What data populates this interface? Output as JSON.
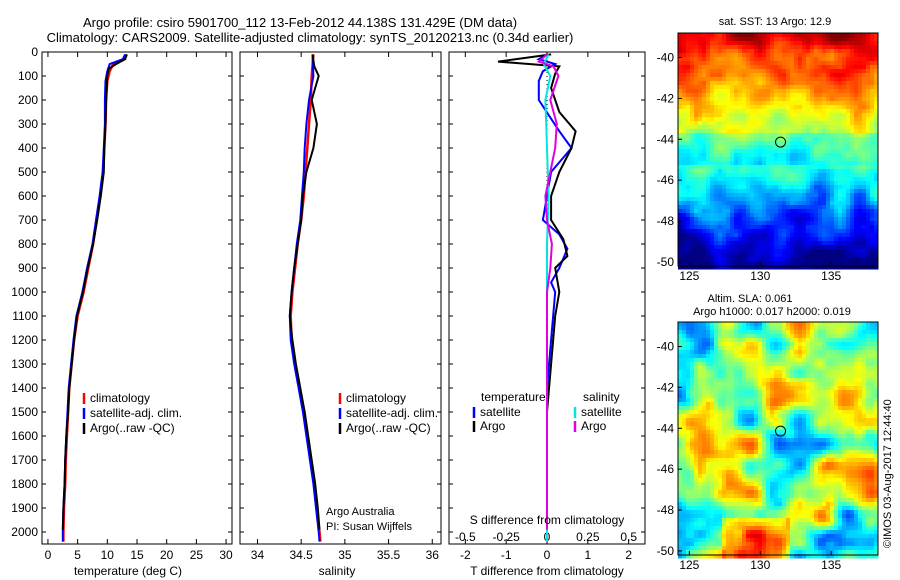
{
  "header": {
    "title1": "Argo profile: csiro 5901700_112 13-Feb-2012 44.138S 131.429E (DM data)",
    "title2": "Climatology: CARS2009. Satellite-adjusted climatology: synTS_20120213.nc (0.34d earlier)"
  },
  "colors": {
    "climatology": "#ff0000",
    "satellite": "#0000ff",
    "argo": "#000000",
    "salinity_satellite": "#00e5e5",
    "salinity_argo": "#e000e0"
  },
  "chart_data": [
    {
      "type": "line",
      "id": "temperature",
      "xlabel": "temperature (deg C)",
      "ylabel": "",
      "xlim": [
        -1,
        31
      ],
      "ylim": [
        2050,
        0
      ],
      "xticks": [
        0,
        5,
        10,
        15,
        20,
        25,
        30
      ],
      "yticks": [
        0,
        100,
        200,
        300,
        400,
        500,
        600,
        700,
        800,
        900,
        1000,
        1100,
        1200,
        1300,
        1400,
        1500,
        1600,
        1700,
        1800,
        1900,
        2000
      ],
      "legend": [
        "climatology",
        "satellite-adj. clim.",
        "Argo(..raw -QC)"
      ],
      "series": [
        {
          "name": "climatology",
          "color": "#ff0000",
          "points": [
            [
              13.2,
              10
            ],
            [
              12.8,
              30
            ],
            [
              11.0,
              50
            ],
            [
              10.4,
              80
            ],
            [
              10.0,
              120
            ],
            [
              9.8,
              200
            ],
            [
              9.7,
              300
            ],
            [
              9.5,
              400
            ],
            [
              9.3,
              500
            ],
            [
              8.8,
              600
            ],
            [
              8.2,
              700
            ],
            [
              7.6,
              800
            ],
            [
              6.8,
              900
            ],
            [
              6.0,
              1000
            ],
            [
              5.0,
              1100
            ],
            [
              4.4,
              1200
            ],
            [
              4.0,
              1300
            ],
            [
              3.6,
              1400
            ],
            [
              3.4,
              1500
            ],
            [
              3.2,
              1600
            ],
            [
              3.0,
              1700
            ],
            [
              2.9,
              1800
            ],
            [
              2.7,
              1900
            ],
            [
              2.6,
              2000
            ],
            [
              2.6,
              2040
            ]
          ]
        },
        {
          "name": "satellite-adj. clim.",
          "color": "#0000ff",
          "points": [
            [
              13.0,
              10
            ],
            [
              12.6,
              30
            ],
            [
              10.4,
              50
            ],
            [
              10.0,
              80
            ],
            [
              9.7,
              120
            ],
            [
              9.6,
              200
            ],
            [
              9.6,
              300
            ],
            [
              9.4,
              400
            ],
            [
              9.2,
              500
            ],
            [
              8.7,
              600
            ],
            [
              8.1,
              700
            ],
            [
              7.5,
              800
            ],
            [
              6.6,
              900
            ],
            [
              5.8,
              1000
            ],
            [
              4.8,
              1100
            ],
            [
              4.3,
              1200
            ],
            [
              3.9,
              1300
            ],
            [
              3.5,
              1400
            ],
            [
              3.3,
              1500
            ],
            [
              3.1,
              1600
            ],
            [
              2.9,
              1700
            ],
            [
              2.8,
              1800
            ],
            [
              2.6,
              1900
            ],
            [
              2.5,
              2000
            ],
            [
              2.5,
              2040
            ]
          ]
        },
        {
          "name": "Argo(..raw -QC)",
          "color": "#000000",
          "points": [
            [
              13.3,
              10
            ],
            [
              13.0,
              30
            ],
            [
              11.5,
              50
            ],
            [
              10.2,
              70
            ],
            [
              10.0,
              100
            ],
            [
              9.8,
              200
            ],
            [
              9.7,
              300
            ],
            [
              9.5,
              400
            ],
            [
              9.4,
              500
            ],
            [
              8.9,
              600
            ],
            [
              8.3,
              700
            ],
            [
              7.6,
              800
            ],
            [
              6.7,
              900
            ],
            [
              5.9,
              1000
            ],
            [
              4.9,
              1100
            ],
            [
              4.4,
              1200
            ],
            [
              4.0,
              1300
            ],
            [
              3.6,
              1400
            ],
            [
              3.4,
              1500
            ],
            [
              3.1,
              1600
            ],
            [
              2.9,
              1700
            ],
            [
              2.8,
              1800
            ],
            [
              2.6,
              1900
            ],
            [
              2.5,
              1990
            ]
          ]
        }
      ]
    },
    {
      "type": "line",
      "id": "salinity",
      "xlabel": "salinity",
      "ylabel": "",
      "xlim": [
        33.8,
        36.1
      ],
      "ylim": [
        2050,
        0
      ],
      "xticks": [
        34,
        34.5,
        35,
        35.5,
        36
      ],
      "xticklabels": [
        "34",
        "34.5",
        "35",
        "35.5",
        "36"
      ],
      "legend": [
        "climatology",
        "satellite-adj. clim.",
        "Argo(..raw -QC)"
      ],
      "annotation": [
        "Argo Australia",
        "PI: Susan Wijffels"
      ],
      "series": [
        {
          "name": "climatology",
          "color": "#ff0000",
          "points": [
            [
              34.64,
              10
            ],
            [
              34.62,
              100
            ],
            [
              34.61,
              200
            ],
            [
              34.59,
              300
            ],
            [
              34.57,
              400
            ],
            [
              34.55,
              500
            ],
            [
              34.53,
              600
            ],
            [
              34.5,
              700
            ],
            [
              34.46,
              800
            ],
            [
              34.43,
              900
            ],
            [
              34.4,
              1000
            ],
            [
              34.38,
              1100
            ],
            [
              34.39,
              1200
            ],
            [
              34.43,
              1300
            ],
            [
              34.48,
              1400
            ],
            [
              34.53,
              1500
            ],
            [
              34.57,
              1600
            ],
            [
              34.61,
              1700
            ],
            [
              34.65,
              1800
            ],
            [
              34.68,
              1900
            ],
            [
              34.71,
              2000
            ],
            [
              34.72,
              2040
            ]
          ]
        },
        {
          "name": "satellite-adj. clim.",
          "color": "#0000ff",
          "points": [
            [
              34.63,
              10
            ],
            [
              34.64,
              100
            ],
            [
              34.59,
              200
            ],
            [
              34.56,
              300
            ],
            [
              34.54,
              400
            ],
            [
              34.53,
              500
            ],
            [
              34.51,
              600
            ],
            [
              34.49,
              700
            ],
            [
              34.45,
              800
            ],
            [
              34.42,
              900
            ],
            [
              34.39,
              1000
            ],
            [
              34.37,
              1100
            ],
            [
              34.38,
              1200
            ],
            [
              34.42,
              1300
            ],
            [
              34.47,
              1400
            ],
            [
              34.52,
              1500
            ],
            [
              34.56,
              1600
            ],
            [
              34.6,
              1700
            ],
            [
              34.64,
              1800
            ],
            [
              34.67,
              1900
            ],
            [
              34.7,
              2000
            ],
            [
              34.71,
              2040
            ]
          ]
        },
        {
          "name": "Argo(..raw -QC)",
          "color": "#000000",
          "points": [
            [
              34.63,
              10
            ],
            [
              34.65,
              60
            ],
            [
              34.7,
              100
            ],
            [
              34.62,
              200
            ],
            [
              34.68,
              300
            ],
            [
              34.64,
              400
            ],
            [
              34.56,
              500
            ],
            [
              34.52,
              600
            ],
            [
              34.5,
              700
            ],
            [
              34.46,
              800
            ],
            [
              34.42,
              900
            ],
            [
              34.39,
              1000
            ],
            [
              34.37,
              1100
            ],
            [
              34.4,
              1200
            ],
            [
              34.44,
              1300
            ],
            [
              34.49,
              1400
            ],
            [
              34.54,
              1500
            ],
            [
              34.58,
              1600
            ],
            [
              34.62,
              1700
            ],
            [
              34.66,
              1800
            ],
            [
              34.69,
              1900
            ],
            [
              34.71,
              1990
            ]
          ]
        }
      ]
    },
    {
      "type": "line",
      "id": "differences",
      "xlabel": "T difference from climatology",
      "xlabel_top": "S difference from climatology",
      "xlim": [
        -2.4,
        2.4
      ],
      "ylim": [
        2050,
        0
      ],
      "xticks": [
        -2,
        -1,
        0,
        1,
        2
      ],
      "sxticks": [
        -0.5,
        -0.25,
        0,
        0.25,
        0.5
      ],
      "sxticklabels": [
        "-0.5",
        "-0.25",
        "0",
        "0.25",
        "0.5"
      ],
      "legend": {
        "temperature": "temperature",
        "salinity": "salinity",
        "items": [
          "satellite",
          "Argo",
          "satellite",
          "Argo"
        ]
      },
      "series": [
        {
          "name": "T satellite",
          "color": "#0000ff",
          "points": [
            [
              0,
              10
            ],
            [
              -0.2,
              30
            ],
            [
              0.2,
              50
            ],
            [
              -0.1,
              80
            ],
            [
              -0.2,
              120
            ],
            [
              -0.2,
              200
            ],
            [
              0.3,
              330
            ],
            [
              0.6,
              400
            ],
            [
              0.1,
              500
            ],
            [
              0.0,
              600
            ],
            [
              -0.1,
              700
            ],
            [
              0.3,
              760
            ],
            [
              0.5,
              820
            ],
            [
              0.3,
              900
            ],
            [
              0.1,
              960
            ],
            [
              0.2,
              1000
            ],
            [
              0.1,
              1200
            ],
            [
              0.0,
              1400
            ],
            [
              0.0,
              1700
            ],
            [
              0.0,
              2040
            ]
          ]
        },
        {
          "name": "T Argo",
          "color": "#000000",
          "points": [
            [
              0.1,
              10
            ],
            [
              -1.2,
              40
            ],
            [
              0.3,
              60
            ],
            [
              0.2,
              90
            ],
            [
              0.1,
              150
            ],
            [
              0.3,
              250
            ],
            [
              0.7,
              330
            ],
            [
              0.6,
              400
            ],
            [
              0.3,
              500
            ],
            [
              0.1,
              600
            ],
            [
              0.1,
              700
            ],
            [
              0.4,
              780
            ],
            [
              0.5,
              850
            ],
            [
              0.2,
              900
            ],
            [
              0.3,
              1000
            ],
            [
              0.2,
              1100
            ],
            [
              0.1,
              1300
            ],
            [
              0.0,
              1500
            ],
            [
              0.0,
              1800
            ],
            [
              0.0,
              1990
            ]
          ]
        },
        {
          "name": "S satellite",
          "color": "#00e5e5",
          "points": [
            [
              0.01,
              10
            ],
            [
              -0.02,
              50
            ],
            [
              0.02,
              100
            ],
            [
              -0.01,
              200
            ],
            [
              0.0,
              400
            ],
            [
              0.01,
              600
            ],
            [
              0.0,
              800
            ],
            [
              0.0,
              1000
            ],
            [
              0.0,
              1300
            ],
            [
              0.0,
              1600
            ],
            [
              0.0,
              2040
            ]
          ]
        },
        {
          "name": "S Argo",
          "color": "#e000e0",
          "points": [
            [
              0.0,
              10
            ],
            [
              -0.05,
              40
            ],
            [
              0.04,
              60
            ],
            [
              0.07,
              100
            ],
            [
              0.02,
              200
            ],
            [
              0.06,
              300
            ],
            [
              0.05,
              400
            ],
            [
              0.02,
              500
            ],
            [
              -0.01,
              600
            ],
            [
              0.0,
              700
            ],
            [
              0.03,
              800
            ],
            [
              0.02,
              900
            ],
            [
              0.0,
              1000
            ],
            [
              0.0,
              1200
            ],
            [
              0.0,
              1500
            ],
            [
              0.0,
              1990
            ]
          ]
        }
      ]
    },
    {
      "type": "heatmap",
      "id": "sst-map",
      "title": "sat. SST: 13 Argo: 12.9",
      "xlim": [
        124.2,
        138.3
      ],
      "ylim": [
        -50.2,
        -38.8
      ],
      "xticks": [
        125,
        130,
        135
      ],
      "yticks": [
        -40,
        -42,
        -44,
        -46,
        -48,
        -50
      ],
      "profile_location": [
        131.429,
        -44.138
      ]
    },
    {
      "type": "heatmap",
      "id": "sla-map",
      "title_line1": "Altim. SLA: 0.061",
      "title_line2": "Argo h1000: 0.017 h2000: 0.019",
      "xlim": [
        124.2,
        138.3
      ],
      "ylim": [
        -50.2,
        -38.8
      ],
      "xticks": [
        125,
        130,
        135
      ],
      "yticks": [
        -40,
        -42,
        -44,
        -46,
        -48,
        -50
      ],
      "profile_location": [
        131.429,
        -44.138
      ]
    }
  ],
  "footer": {
    "watermark": "©IMOS 03-Aug-2017 12:44:40"
  }
}
